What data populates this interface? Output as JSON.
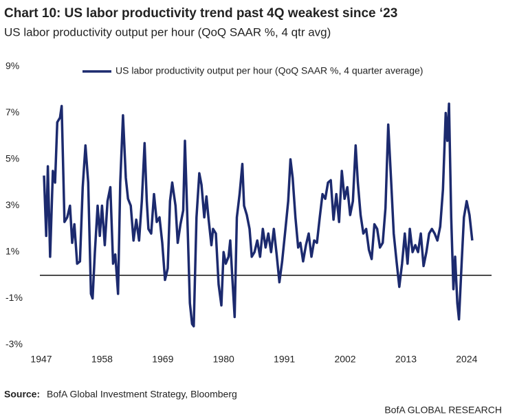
{
  "chart_data": {
    "type": "line",
    "title": "Chart 10: US labor productivity trend past 4Q weakest since ‘23",
    "subtitle": "US labor productivity output per hour (QoQ SAAR %, 4 qtr avg)",
    "source_label": "Source:",
    "source": "BofA Global Investment Strategy, Bloomberg",
    "branding": "BofA GLOBAL RESEARCH",
    "x": [
      1947.5,
      1947.9,
      1948.2,
      1948.6,
      1949.1,
      1949.5,
      1949.9,
      1950.4,
      1950.7,
      1951.2,
      1951.7,
      1952.2,
      1952.6,
      1953.0,
      1953.5,
      1954.0,
      1954.5,
      1955.0,
      1955.5,
      1956.0,
      1956.3,
      1956.7,
      1957.2,
      1957.6,
      1958.0,
      1958.5,
      1959.0,
      1959.5,
      1960.0,
      1960.4,
      1960.9,
      1961.3,
      1961.8,
      1962.3,
      1962.7,
      1963.2,
      1963.7,
      1964.2,
      1964.7,
      1965.2,
      1965.7,
      1966.1,
      1966.4,
      1966.9,
      1967.4,
      1967.9,
      1968.4,
      1968.9,
      1969.4,
      1969.9,
      1970.3,
      1970.7,
      1971.3,
      1971.7,
      1972.2,
      1972.7,
      1973.0,
      1973.5,
      1973.9,
      1974.3,
      1974.6,
      1975.1,
      1975.6,
      1976.0,
      1976.5,
      1976.9,
      1977.3,
      1977.8,
      1978.1,
      1978.6,
      1979.1,
      1979.6,
      1980.0,
      1980.4,
      1980.9,
      1981.2,
      1981.6,
      1982.0,
      1982.4,
      1982.9,
      1983.4,
      1983.7,
      1984.2,
      1984.7,
      1985.1,
      1985.6,
      1986.1,
      1986.6,
      1987.1,
      1987.6,
      1988.1,
      1988.6,
      1989.1,
      1989.6,
      1990.1,
      1990.6,
      1991.2,
      1991.7,
      1992.1,
      1992.5,
      1993.0,
      1993.5,
      1993.9,
      1994.4,
      1994.9,
      1995.4,
      1995.9,
      1996.4,
      1996.9,
      1997.4,
      1997.9,
      1998.4,
      1998.9,
      1999.4,
      1999.9,
      2000.4,
      2000.9,
      2001.4,
      2001.9,
      2002.4,
      2002.9,
      2003.4,
      2003.9,
      2004.3,
      2004.8,
      2005.3,
      2005.8,
      2006.3,
      2006.8,
      2007.3,
      2007.8,
      2008.3,
      2008.8,
      2009.3,
      2009.8,
      2010.3,
      2010.8,
      2011.3,
      2011.8,
      2012.3,
      2012.8,
      2013.3,
      2013.7,
      2014.2,
      2014.7,
      2015.2,
      2015.7,
      2016.2,
      2016.7,
      2017.2,
      2017.7,
      2018.2,
      2018.7,
      2019.2,
      2019.7,
      2020.2,
      2020.5,
      2020.8,
      2021.2,
      2021.6,
      2021.9,
      2022.3,
      2022.6,
      2023.1,
      2023.5,
      2024.0,
      2024.5,
      2025.0
    ],
    "series": [
      {
        "name": "US labor productivity output per hour (QoQ SAAR %, 4 quarter average)",
        "color": "#1c2a6e",
        "values": [
          4.3,
          1.7,
          4.7,
          0.8,
          4.5,
          4.0,
          6.6,
          6.8,
          7.3,
          2.3,
          2.5,
          3.0,
          1.4,
          2.2,
          0.5,
          0.6,
          3.8,
          5.6,
          4.0,
          -0.8,
          -1.0,
          1.0,
          3.0,
          1.7,
          3.0,
          1.3,
          3.2,
          3.8,
          0.5,
          0.9,
          -0.8,
          4.0,
          6.9,
          4.2,
          3.3,
          3.0,
          1.5,
          2.4,
          1.5,
          3.2,
          5.7,
          3.2,
          2.0,
          1.8,
          3.5,
          2.3,
          2.5,
          1.4,
          -0.2,
          0.3,
          3.2,
          4.0,
          3.0,
          1.4,
          2.2,
          2.8,
          5.8,
          2.0,
          -1.2,
          -2.1,
          -2.2,
          2.5,
          4.4,
          3.9,
          2.5,
          3.4,
          2.4,
          1.3,
          2.0,
          1.8,
          -0.4,
          -1.3,
          1.0,
          0.5,
          0.8,
          1.5,
          -0.2,
          -1.8,
          2.5,
          3.5,
          4.8,
          3.0,
          2.6,
          2.0,
          0.8,
          1.0,
          1.5,
          0.8,
          2.0,
          1.2,
          1.8,
          1.0,
          2.0,
          0.9,
          -0.3,
          0.6,
          2.0,
          3.2,
          5.0,
          4.2,
          2.5,
          1.2,
          1.4,
          0.6,
          1.3,
          1.8,
          0.8,
          1.5,
          1.4,
          2.5,
          3.5,
          3.3,
          4.0,
          4.1,
          2.4,
          3.5,
          2.3,
          4.5,
          3.3,
          3.8,
          2.6,
          3.2,
          5.6,
          4.0,
          2.6,
          1.8,
          2.0,
          1.1,
          0.7,
          2.2,
          2.0,
          1.2,
          1.4,
          2.9,
          6.5,
          4.2,
          1.8,
          0.6,
          -0.5,
          0.5,
          1.8,
          0.5,
          2.0,
          1.0,
          1.3,
          1.0,
          1.8,
          0.4,
          1.0,
          1.8,
          2.0,
          1.8,
          1.5,
          2.1,
          3.7,
          7.0,
          5.8,
          7.4,
          2.5,
          -0.6,
          0.8,
          -1.2,
          -1.9,
          0.6,
          2.5,
          3.2,
          2.6,
          1.5
        ]
      }
    ],
    "xlim": [
      1947,
      2028.5
    ],
    "xticks": [
      1947,
      1958,
      1969,
      1980,
      1991,
      2002,
      2013,
      2024
    ],
    "ylim": [
      -3,
      9
    ],
    "yticks": [
      {
        "value": -3,
        "label": "-3%"
      },
      {
        "value": -1,
        "label": "-1%"
      },
      {
        "value": 1,
        "label": "1%"
      },
      {
        "value": 3,
        "label": "3%"
      },
      {
        "value": 5,
        "label": "5%"
      },
      {
        "value": 7,
        "label": "7%"
      },
      {
        "value": 9,
        "label": "9%"
      }
    ],
    "hline": 0,
    "grid": false,
    "legend": "top"
  }
}
